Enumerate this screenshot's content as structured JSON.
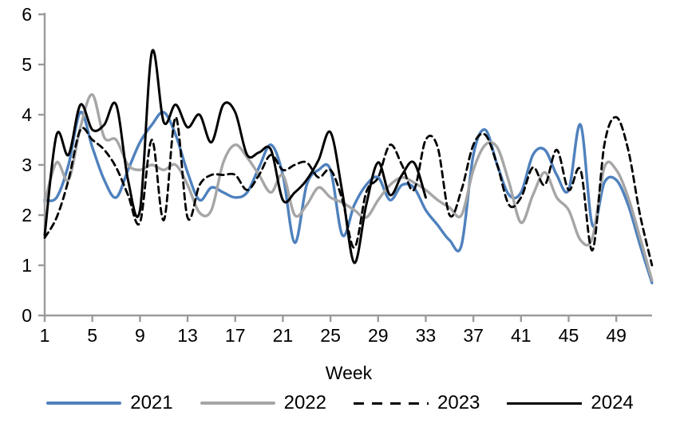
{
  "chart_data": {
    "type": "line",
    "title": "",
    "xlabel": "Week",
    "ylabel": "",
    "ylim": [
      0,
      6
    ],
    "y_ticks": [
      0,
      1,
      2,
      3,
      4,
      5,
      6
    ],
    "x_ticks": [
      1,
      5,
      9,
      13,
      17,
      21,
      25,
      29,
      33,
      37,
      41,
      45,
      49
    ],
    "x_range": [
      1,
      52
    ],
    "grid": false,
    "smoothed": true,
    "legend_position": "bottom",
    "axis_color": "#9B9B9B",
    "text_color": "#000000",
    "series": [
      {
        "name": "2021",
        "color": "#4F81BD",
        "dash": false,
        "width": 3.4,
        "start_week": 1,
        "values": [
          2.3,
          2.35,
          3.0,
          4.05,
          3.35,
          2.7,
          2.35,
          2.9,
          3.45,
          3.8,
          4.05,
          3.6,
          2.85,
          2.3,
          2.55,
          2.45,
          2.35,
          2.45,
          2.95,
          3.4,
          2.8,
          1.45,
          2.6,
          2.9,
          2.9,
          1.6,
          2.2,
          2.6,
          2.75,
          2.3,
          2.6,
          2.55,
          2.1,
          1.8,
          1.5,
          1.4,
          3.2,
          3.7,
          3.0,
          2.4,
          2.45,
          3.2,
          3.3,
          2.8,
          2.5,
          3.8,
          1.8,
          2.65,
          2.7,
          2.2,
          1.4,
          0.65
        ]
      },
      {
        "name": "2022",
        "color": "#A6A6A6",
        "dash": false,
        "width": 3.4,
        "start_week": 1,
        "values": [
          2.25,
          3.05,
          2.7,
          3.75,
          4.4,
          3.55,
          3.5,
          3.0,
          2.9,
          3.0,
          2.9,
          3.0,
          2.6,
          2.05,
          2.1,
          3.05,
          3.4,
          3.15,
          2.8,
          2.45,
          2.8,
          2.0,
          2.2,
          2.55,
          2.35,
          2.25,
          2.1,
          1.95,
          2.3,
          2.6,
          2.75,
          2.65,
          2.5,
          2.3,
          2.15,
          2.0,
          2.9,
          3.4,
          3.35,
          2.65,
          1.85,
          2.4,
          2.85,
          2.35,
          2.1,
          1.5,
          1.55,
          2.95,
          2.9,
          2.35,
          1.55,
          0.7
        ]
      },
      {
        "name": "2023",
        "color": "#000000",
        "dash": true,
        "width": 2.8,
        "start_week": 1,
        "values": [
          1.55,
          1.95,
          2.7,
          3.7,
          3.5,
          3.3,
          2.95,
          2.4,
          1.85,
          3.5,
          1.9,
          3.95,
          1.95,
          2.6,
          2.8,
          2.8,
          2.8,
          2.5,
          2.8,
          3.2,
          2.9,
          3.0,
          3.05,
          2.75,
          2.9,
          2.3,
          1.35,
          2.45,
          2.75,
          3.4,
          3.0,
          2.5,
          3.5,
          3.35,
          2.0,
          2.5,
          3.4,
          3.6,
          3.0,
          2.2,
          2.35,
          2.95,
          2.6,
          3.3,
          2.5,
          2.9,
          1.3,
          3.4,
          3.95,
          3.3,
          2.0,
          1.0
        ]
      },
      {
        "name": "2024",
        "color": "#000000",
        "dash": false,
        "width": 3.0,
        "start_week": 1,
        "values": [
          1.6,
          3.6,
          3.2,
          4.2,
          3.7,
          3.8,
          4.2,
          2.7,
          2.1,
          5.25,
          3.85,
          4.2,
          3.75,
          4.0,
          3.45,
          4.2,
          4.05,
          3.2,
          3.25,
          3.3,
          2.3,
          2.45,
          2.7,
          3.1,
          3.65,
          2.45,
          1.05,
          2.2,
          3.05,
          2.4,
          2.8,
          3.05,
          2.35
        ]
      }
    ]
  }
}
